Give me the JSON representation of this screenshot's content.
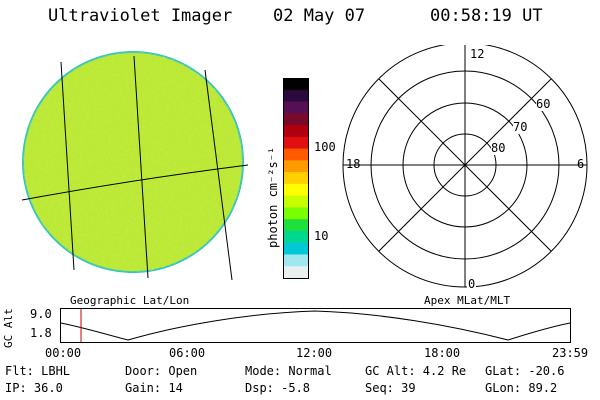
{
  "header": {
    "instrument": "Ultraviolet Imager",
    "date": "02 May 07",
    "time": "00:58:19 UT"
  },
  "colorbar": {
    "unit_label": "photon cm⁻²s⁻¹",
    "ticks": [
      "100",
      "10"
    ],
    "colors": [
      "#000000",
      "#2a0a3a",
      "#551055",
      "#7a0a2a",
      "#b00010",
      "#e01010",
      "#ff5a00",
      "#ff9a00",
      "#ffd000",
      "#ffff00",
      "#c8ff00",
      "#7aff00",
      "#20e040",
      "#00d890",
      "#00c8d8",
      "#a0e8f0",
      "#e8f0f0"
    ]
  },
  "panels": {
    "left_label": "Geographic Lat/Lon",
    "right_label": "Apex MLat/MLT"
  },
  "polar": {
    "mlt_labels": [
      "12",
      "6",
      "0",
      "18"
    ],
    "lat_labels": [
      "60",
      "70",
      "80"
    ]
  },
  "altitude_plot": {
    "ylabel": "GC Alt",
    "yticks": [
      "9.0",
      "1.8"
    ],
    "xticks": [
      "00:00",
      "06:00",
      "12:00",
      "18:00",
      "23:59"
    ]
  },
  "info": {
    "flt": "Flt: LBHL",
    "door": "Door: Open",
    "mode": "Mode: Normal",
    "gcalt": "GC Alt: 4.2 Re",
    "glat": "GLat: -20.6",
    "ip": "IP: 36.0",
    "gain": "Gain: 14",
    "dsp": "Dsp:   -5.8",
    "seq": "Seq: 39",
    "glon": "GLon:  89.2"
  },
  "colors": {
    "earth_green": "#b7e832",
    "earth_rim": "#2ec4c0",
    "marker": "#cc0000"
  }
}
